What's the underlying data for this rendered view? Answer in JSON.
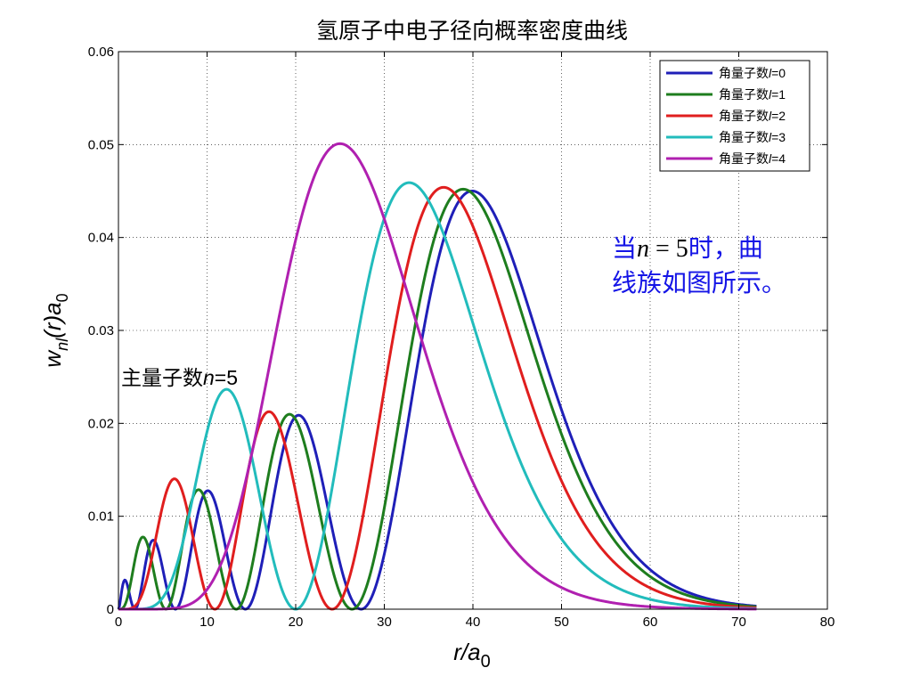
{
  "chart_data": {
    "type": "line",
    "title": "氢原子中电子径向概率密度曲线",
    "xlabel": "r/a",
    "xlabel_sub": "0",
    "ylabel_main": "w",
    "ylabel_sub": "nl",
    "ylabel_mid": "(r)a",
    "ylabel_sub2": "0",
    "xlim": [
      0,
      80
    ],
    "ylim": [
      0,
      0.06
    ],
    "xticks": [
      0,
      10,
      20,
      30,
      40,
      50,
      60,
      70,
      80
    ],
    "yticks": [
      "0",
      "0.01",
      "0.02",
      "0.03",
      "0.04",
      "0.05",
      "0.06"
    ],
    "grid": true,
    "legend_position": "top-right",
    "n": 5,
    "x_max": 72,
    "series": [
      {
        "name": "角量子数l=0",
        "prefix": "角量子数",
        "var": "l",
        "eq": "=0",
        "l": 0,
        "color": "#1f1fb8",
        "peaks": [
          [
            0.8,
            0.003
          ],
          [
            3.9,
            0.0075
          ],
          [
            10.0,
            0.0128
          ],
          [
            20.5,
            0.0209
          ],
          [
            39.8,
            0.045
          ]
        ]
      },
      {
        "name": "角量子数l=1",
        "prefix": "角量子数",
        "var": "l",
        "eq": "=1",
        "l": 1,
        "color": "#1e7d1e",
        "peaks": [
          [
            2.7,
            0.0077
          ],
          [
            9.0,
            0.0128
          ],
          [
            19.3,
            0.021
          ],
          [
            39.0,
            0.0452
          ]
        ]
      },
      {
        "name": "角量子数l=2",
        "prefix": "角量子数",
        "var": "l",
        "eq": "=2",
        "l": 2,
        "color": "#e01e1e",
        "peaks": [
          [
            6.3,
            0.014
          ],
          [
            17.0,
            0.0212
          ],
          [
            36.8,
            0.0454
          ]
        ]
      },
      {
        "name": "角量子数l=3",
        "prefix": "角量子数",
        "var": "l",
        "eq": "=3",
        "l": 3,
        "color": "#22bcbc",
        "peaks": [
          [
            12.3,
            0.0236
          ],
          [
            33.0,
            0.0459
          ]
        ]
      },
      {
        "name": "角量子数l=4",
        "prefix": "角量子数",
        "var": "l",
        "eq": "=4",
        "l": 4,
        "color": "#b020b0",
        "peaks": [
          [
            25.0,
            0.0501
          ]
        ]
      }
    ],
    "annotations": {
      "inner": {
        "prefix": "主量子数",
        "var": "n",
        "suffix": "=5",
        "x": 0,
        "y": 0.0245
      },
      "blue": {
        "line1_a": "当",
        "line1_var": "n",
        "line1_eq": " = 5",
        "line1_b": "时，曲",
        "line2": "线族如图所示。",
        "color": "#1414e6"
      }
    }
  }
}
